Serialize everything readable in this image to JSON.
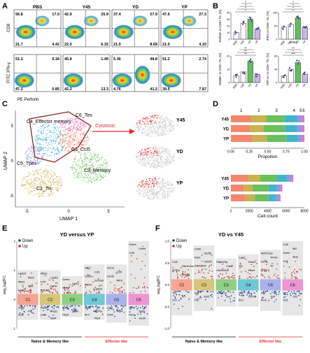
{
  "panel_letters": [
    "A",
    "B",
    "C",
    "D",
    "E",
    "F"
  ],
  "colors": {
    "C1": "#f4866e",
    "C2": "#c9b24f",
    "C3": "#6cbf5a",
    "C4": "#3fb5c9",
    "C5": "#8d98e6",
    "C6": "#ea70c4",
    "red": "#e8262a",
    "dark_red": "#c0392b",
    "blue": "#1f3fa0",
    "gray_bg": "#e6e6e6",
    "purple": "#6a3fa0"
  },
  "panel_a": {
    "y_labels": [
      "CD8",
      "FITC IFN-γ"
    ],
    "x_label": "PE Perforin",
    "columns": [
      "PBS",
      "Y45",
      "YD",
      "YP"
    ],
    "top_row": [
      {
        "tl": "56.8",
        "tr": "17.0",
        "bl": "21.7",
        "br": "4.42"
      },
      {
        "tl": "42.9",
        "tr": "25.9",
        "bl": "22.0",
        "br": "6.32"
      },
      {
        "tl": "37.4",
        "tr": "27.9",
        "bl": "21.0",
        "br": "8.69"
      },
      {
        "tl": "47.6",
        "tr": "27.3",
        "bl": "21.0",
        "br": "4.10"
      }
    ],
    "bottom_row": [
      {
        "tl": "51.1",
        "tr": "0.18",
        "bl": "47.3",
        "br": "0.85"
      },
      {
        "tl": "45.8",
        "tr": "1.49",
        "bl": "42.2",
        "br": "13.3"
      },
      {
        "tl": "5.36",
        "tr": "48.8",
        "bl": "4.76",
        "br": "41.2"
      },
      {
        "tl": "51.2",
        "tr": "2.74",
        "bl": "39.5",
        "br": "7.87"
      }
    ]
  },
  "panel_b": {
    "groups": [
      "PBS",
      "Y45",
      "YD",
      "YP"
    ],
    "plots": [
      {
        "ylabel": "Perforin in CD8+ TIL (%)",
        "ns": "ns",
        "marks": [
          "*",
          "*",
          "*",
          "*"
        ],
        "ticks": [
          "40",
          "30",
          "20",
          "10",
          "0"
        ],
        "chart_data": {
          "type": "bar",
          "categories": [
            "PBS",
            "Y45",
            "YD",
            "YP"
          ],
          "values": [
            10,
            24,
            30,
            15
          ],
          "ylim": [
            0,
            40
          ]
        }
      },
      {
        "ylabel": "IFN-γ in CD8+ TIL (%)",
        "ns": "",
        "marks": [
          "*",
          "*",
          "*",
          "*"
        ],
        "ticks": [
          "100",
          "50",
          "0"
        ],
        "chart_data": {
          "type": "bar",
          "categories": [
            "PBS",
            "Y45",
            "YD",
            "YP"
          ],
          "values": [
            45,
            55,
            80,
            45
          ],
          "ylim": [
            0,
            100
          ]
        }
      },
      {
        "ylabel": "GZMB+ in CD8+ TIL (%)",
        "ns": "",
        "marks": [
          "**",
          "**",
          "**"
        ],
        "ticks": [
          "20",
          "10",
          "0"
        ],
        "chart_data": {
          "type": "bar",
          "categories": [
            "PBS",
            "Y45",
            "YD",
            "YP"
          ],
          "values": [
            5,
            8,
            16,
            6
          ],
          "ylim": [
            0,
            20
          ]
        }
      },
      {
        "ylabel": "TNF-α+ in CD8+ TIL (%)",
        "ns": "0.061",
        "marks": [
          "***",
          "*",
          "**"
        ],
        "ticks": [
          "80",
          "40",
          "0"
        ],
        "chart_data": {
          "type": "bar",
          "categories": [
            "PBS",
            "Y45",
            "YD",
            "YP"
          ],
          "values": [
            20,
            40,
            60,
            25
          ],
          "ylim": [
            0,
            80
          ]
        }
      }
    ]
  },
  "panel_c": {
    "cluster_labels": [
      "C4_Effector memory",
      "C6_Tex",
      "C1_Ccl5",
      "C5_Tpex",
      "C3_Memory",
      "C2_Tn"
    ],
    "arrow_label": "Cytotoxic",
    "x_axis": "UMAP 1",
    "y_axis": "UMAP 2",
    "x_ticks": [
      "-5",
      "0",
      "5"
    ],
    "y_ticks": [
      "5",
      "0",
      "-5"
    ],
    "conditions": [
      "Y45",
      "YD",
      "YP"
    ]
  },
  "panel_d": {
    "chart_data": [
      {
        "type": "bar",
        "categories": [
          "Y45",
          "YD",
          "YP"
        ],
        "series": [
          {
            "name": "1",
            "values": [
              0.28,
              0.26,
              0.29
            ]
          },
          {
            "name": "2",
            "values": [
              0.2,
              0.18,
              0.2
            ]
          },
          {
            "name": "3",
            "values": [
              0.25,
              0.3,
              0.27
            ]
          },
          {
            "name": "4",
            "values": [
              0.17,
              0.16,
              0.15
            ]
          },
          {
            "name": "5",
            "values": [
              0.07,
              0.07,
              0.06
            ]
          },
          {
            "name": "6",
            "values": [
              0.03,
              0.03,
              0.03
            ]
          }
        ],
        "xlabel": "Propotion",
        "xlim": [
          0,
          1.0
        ],
        "x_ticks": [
          "0.00",
          "0.25",
          "0.50",
          "0.75",
          "1.00"
        ]
      },
      {
        "type": "bar",
        "categories": [
          "Y45",
          "YD",
          "YP"
        ],
        "series": [
          {
            "name": "1",
            "values": [
              1900,
              1400,
              1550
            ]
          },
          {
            "name": "2",
            "values": [
              1300,
              1000,
              1050
            ]
          },
          {
            "name": "3",
            "values": [
              1800,
              1700,
              1500
            ]
          },
          {
            "name": "4",
            "values": [
              1100,
              900,
              800
            ]
          },
          {
            "name": "5",
            "values": [
              500,
              400,
              350
            ]
          },
          {
            "name": "6",
            "values": [
              200,
              200,
              150
            ]
          }
        ],
        "xlabel": "Cell count",
        "xlim": [
          0,
          8000
        ],
        "x_ticks": [
          "0",
          "2000",
          "4000",
          "6000",
          "8000"
        ]
      }
    ]
  },
  "panel_e": {
    "title": "YD versus YP",
    "legend": [
      "Down",
      "Up"
    ],
    "ylabel": "avg_log2FC",
    "y_ticks": [
      "2",
      "1",
      "0",
      "-1"
    ],
    "clusters": [
      "C1",
      "C2",
      "C3",
      "C4",
      "C5",
      "C6"
    ],
    "group_labels": [
      "Naïve & Memory like",
      "Effector like"
    ],
    "chart_data": {
      "type": "scatter",
      "categories": [
        "C1",
        "C2",
        "C3",
        "C4",
        "C5",
        "C6"
      ],
      "up_max": [
        1.0,
        1.0,
        0.8,
        1.2,
        1.2,
        2.0
      ],
      "down_min": [
        -0.7,
        -0.7,
        -0.6,
        -0.7,
        -0.8,
        -0.9
      ],
      "ylim": [
        -1,
        2
      ]
    },
    "up_genes": [
      [
        "Lgals3",
        "Ifitm2",
        "Ifitm3",
        "Ccl5",
        "Lgals1",
        "S100a6"
      ],
      [
        "Ifitm3",
        "Lgals3",
        "Ccl5",
        "Gzmb",
        "S100a6",
        "Lgals1"
      ],
      [
        "Gzma",
        "Lars2",
        "Ifitm3",
        "Ifitm1"
      ],
      [
        "Nkg7",
        "Ccl5",
        "Gzmb",
        "S100a6",
        "Gzma",
        "Lgals3"
      ],
      [
        "Gzma",
        "Ccl5",
        "Gzmb",
        "Ifitm1"
      ],
      [
        "Gzma",
        "Gzmb",
        "Ccl5"
      ]
    ],
    "down_genes": [
      [
        "Stat3",
        "Fos",
        "Ikzf2"
      ],
      [
        "Stat3",
        "Foxp1",
        "Jund",
        "Stat4",
        "Pkp4"
      ],
      [
        "Ikzf2",
        "Stat3",
        "Pkp4"
      ],
      [
        "Zeb1",
        "Il27Ra",
        "Itk",
        "Pkp4"
      ],
      [
        "Jund",
        "Pkp4",
        "Cd44"
      ],
      [
        "Cd44",
        "Stat3",
        "Rora",
        "Jund"
      ]
    ]
  },
  "panel_f": {
    "title": "YD vs Y45",
    "legend": [
      "Down",
      "Up"
    ],
    "ylabel": "avg_log2FC",
    "y_ticks": [
      "1.0",
      "0.5",
      "0.0",
      "-0.5",
      "-1.0"
    ],
    "clusters": [
      "C1",
      "C2",
      "C3",
      "C4",
      "C5",
      "C6"
    ],
    "group_labels": [
      "Naïve & Memory like",
      "Effector like"
    ],
    "chart_data": {
      "type": "scatter",
      "categories": [
        "C1",
        "C2",
        "C3",
        "C4",
        "C5",
        "C6"
      ],
      "up_max": [
        0.6,
        0.9,
        0.6,
        0.7,
        0.8,
        1.0
      ],
      "down_min": [
        -0.7,
        -0.6,
        -0.5,
        -0.5,
        -0.6,
        -0.7
      ],
      "ylim": [
        -1.0,
        1.0
      ]
    },
    "up_genes": [
      [
        "Ccl5",
        "Hist1h2ap",
        "Il27Ra",
        "Cd226",
        "Sp4"
      ],
      [
        "Cd48",
        "Gpr65",
        "Hopx",
        "Cd226",
        "Gm43818"
      ],
      [
        "Hist1h2aj",
        "Cd48",
        "Hist1h2bd"
      ],
      [
        "Cd69",
        "Nr4a1",
        "Tnf",
        "Ifitm3"
      ],
      [
        "Hist1h2ap",
        "Nr4a1",
        "Gzme",
        "Il2",
        "Cd69"
      ],
      [
        "Ccl5",
        "Ifit2",
        "Gzme",
        "Ccl4",
        "Xcl1"
      ]
    ],
    "down_genes": [
      [
        "Tcf7",
        "Il7r",
        "Xcl1"
      ],
      [
        "Sell",
        "Ikzf2",
        "Fos"
      ],
      [
        "Smad7",
        "Jun"
      ],
      [
        "Ccr7",
        "Cd79a",
        "Itm1"
      ],
      [
        "Tcf7",
        "Tcf4",
        "Rora"
      ],
      [
        "Tcf7",
        "Tcf2",
        "Xcl1"
      ]
    ]
  }
}
